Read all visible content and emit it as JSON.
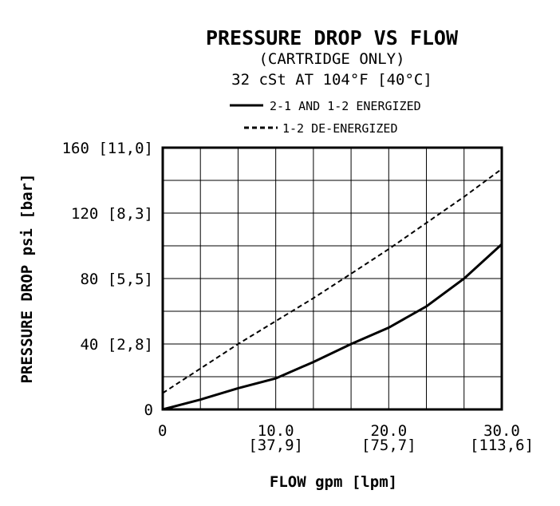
{
  "chart_data": {
    "type": "line",
    "title": "PRESSURE DROP VS FLOW",
    "subtitle_lines": [
      "(CARTRIDGE ONLY)",
      "32 cSt AT 104°F [40°C]"
    ],
    "xlabel": "FLOW gpm [lpm]",
    "ylabel": "PRESSURE DROP psi [bar]",
    "xlim": [
      0,
      30
    ],
    "ylim": [
      0,
      160
    ],
    "x_grid_step": 3.333,
    "y_grid_step": 20,
    "grid": true,
    "legend_position": "top",
    "x_ticks": [
      {
        "value": 0,
        "label": "0",
        "sublabel": ""
      },
      {
        "value": 10,
        "label": "10.0",
        "sublabel": "[37,9]"
      },
      {
        "value": 20,
        "label": "20.0",
        "sublabel": "[75,7]"
      },
      {
        "value": 30,
        "label": "30.0",
        "sublabel": "[113,6]"
      }
    ],
    "y_ticks": [
      {
        "value": 0,
        "label": "0"
      },
      {
        "value": 40,
        "label": "40 [2,8]"
      },
      {
        "value": 80,
        "label": "80 [5,5]"
      },
      {
        "value": 120,
        "label": "120 [8,3]"
      },
      {
        "value": 160,
        "label": "160 [11,0]"
      }
    ],
    "series": [
      {
        "name": "2-1 AND 1-2 ENERGIZED",
        "style": "solid",
        "x": [
          0,
          3.33,
          6.67,
          10,
          13.33,
          16.67,
          20,
          23.33,
          26.67,
          30
        ],
        "y": [
          0,
          6,
          13,
          19,
          29,
          40,
          50,
          63,
          80,
          101
        ]
      },
      {
        "name": "1-2 DE-ENERGIZED",
        "style": "dashed",
        "x": [
          0,
          3.33,
          6.67,
          10,
          13.33,
          16.67,
          20,
          23.33,
          26.67,
          30
        ],
        "y": [
          10,
          25,
          40,
          54,
          68,
          83,
          98,
          114,
          130,
          147
        ]
      }
    ]
  }
}
